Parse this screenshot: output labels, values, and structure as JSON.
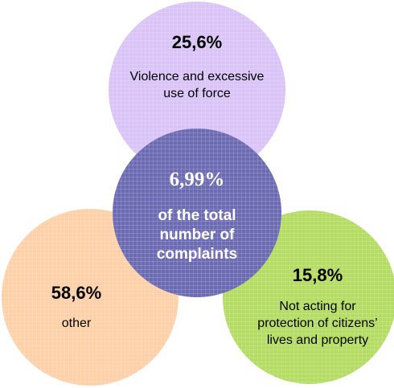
{
  "colors": {
    "top": "#d9c3f7",
    "left": "#fdd0a8",
    "right": "#b4dc62",
    "center": "#6b6ab3",
    "center_text": "#ffffff",
    "grid": "#ffffff"
  },
  "diagram": {
    "top": {
      "percent": "25,6%",
      "label": "Violence and excessive use of force"
    },
    "left": {
      "percent": "58,6%",
      "label": "other"
    },
    "right": {
      "percent": "15,8%",
      "label": "Not acting for protection of citizens’ lives and property"
    },
    "center": {
      "percent": "6,99%",
      "label": "of the total number of complaints"
    }
  }
}
